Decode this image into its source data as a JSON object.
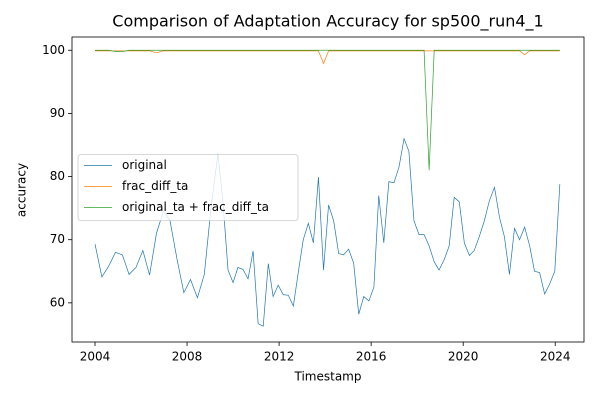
{
  "chart_data": {
    "type": "line",
    "title": "Comparison of Adaptation Accuracy for sp500_run4_1",
    "x_label": "Timestamp",
    "y_label": "accuracy",
    "x": [
      2004.0,
      2004.3,
      2004.59,
      2004.89,
      2005.19,
      2005.48,
      2005.78,
      2006.08,
      2006.37,
      2006.67,
      2006.97,
      2007.26,
      2007.56,
      2007.86,
      2008.15,
      2008.45,
      2008.75,
      2009.04,
      2009.34,
      2009.56,
      2009.78,
      2010.0,
      2010.21,
      2010.43,
      2010.65,
      2010.87,
      2011.09,
      2011.31,
      2011.53,
      2011.74,
      2011.96,
      2012.18,
      2012.4,
      2012.62,
      2012.84,
      2013.05,
      2013.27,
      2013.49,
      2013.71,
      2013.93,
      2014.15,
      2014.37,
      2014.59,
      2014.8,
      2015.02,
      2015.24,
      2015.46,
      2015.68,
      2015.9,
      2016.12,
      2016.33,
      2016.55,
      2016.77,
      2016.99,
      2017.21,
      2017.43,
      2017.64,
      2017.86,
      2018.08,
      2018.3,
      2018.52,
      2018.74,
      2018.95,
      2019.17,
      2019.39,
      2019.61,
      2019.83,
      2020.05,
      2020.27,
      2020.48,
      2020.7,
      2020.92,
      2021.14,
      2021.36,
      2021.58,
      2021.79,
      2022.01,
      2022.23,
      2022.45,
      2022.67,
      2022.89,
      2023.1,
      2023.32,
      2023.54,
      2023.76,
      2023.98,
      2024.2
    ],
    "series": [
      {
        "name": "original",
        "color": "#1f77b4",
        "values": [
          69.3,
          64.1,
          65.8,
          68.0,
          67.6,
          64.5,
          65.6,
          68.3,
          64.4,
          71.0,
          74.5,
          73.0,
          67.0,
          61.6,
          63.7,
          60.8,
          64.5,
          75.0,
          83.6,
          76.0,
          65.2,
          63.2,
          65.6,
          65.3,
          63.8,
          68.2,
          56.7,
          56.3,
          66.2,
          61.0,
          62.8,
          61.3,
          61.2,
          59.5,
          65.0,
          70.0,
          72.6,
          69.5,
          79.9,
          65.2,
          75.5,
          73.0,
          67.8,
          67.6,
          68.5,
          66.3,
          58.2,
          61.0,
          60.3,
          62.5,
          77.0,
          69.5,
          79.2,
          79.0,
          81.5,
          86.0,
          84.0,
          73.0,
          70.8,
          70.8,
          69.0,
          66.5,
          65.2,
          66.8,
          69.0,
          76.7,
          76.0,
          69.5,
          67.5,
          68.3,
          70.5,
          73.0,
          76.2,
          78.3,
          73.5,
          70.5,
          64.5,
          71.8,
          70.0,
          72.0,
          69.0,
          65.0,
          64.8,
          61.4,
          63.0,
          65.0,
          78.8
        ]
      },
      {
        "name": "frac_diff_ta",
        "color": "#ff7f0e",
        "values": [
          99.9,
          99.9,
          99.9,
          99.9,
          99.9,
          99.9,
          99.9,
          99.9,
          99.9,
          99.6,
          99.9,
          99.9,
          99.9,
          99.9,
          99.9,
          99.9,
          99.9,
          99.9,
          99.9,
          99.9,
          99.9,
          99.9,
          99.9,
          99.9,
          99.9,
          99.9,
          99.9,
          99.9,
          99.9,
          99.9,
          99.9,
          99.9,
          99.9,
          99.9,
          99.9,
          99.9,
          99.9,
          99.9,
          99.9,
          97.9,
          99.9,
          99.9,
          99.9,
          99.9,
          99.9,
          99.9,
          99.9,
          99.9,
          99.9,
          99.9,
          99.9,
          99.9,
          99.9,
          99.9,
          99.9,
          99.9,
          99.9,
          99.9,
          99.9,
          99.9,
          99.9,
          99.9,
          99.9,
          99.9,
          99.9,
          99.9,
          99.9,
          99.9,
          99.9,
          99.9,
          99.9,
          99.9,
          99.9,
          99.9,
          99.9,
          99.9,
          99.9,
          99.9,
          99.9,
          99.3,
          99.9,
          99.9,
          99.9,
          99.9,
          99.9,
          99.9,
          99.9
        ]
      },
      {
        "name": "original_ta + frac_diff_ta",
        "color": "#2ca02c",
        "values": [
          100.0,
          100.0,
          100.0,
          99.8,
          99.8,
          100.0,
          100.0,
          100.0,
          100.0,
          100.0,
          100.0,
          100.0,
          100.0,
          100.0,
          100.0,
          100.0,
          100.0,
          100.0,
          100.0,
          100.0,
          100.0,
          100.0,
          100.0,
          100.0,
          100.0,
          100.0,
          100.0,
          100.0,
          100.0,
          100.0,
          100.0,
          100.0,
          100.0,
          100.0,
          100.0,
          100.0,
          100.0,
          100.0,
          100.0,
          100.0,
          100.0,
          100.0,
          100.0,
          100.0,
          100.0,
          100.0,
          100.0,
          100.0,
          100.0,
          100.0,
          100.0,
          100.0,
          100.0,
          100.0,
          100.0,
          100.0,
          100.0,
          100.0,
          100.0,
          100.0,
          81.0,
          100.0,
          100.0,
          100.0,
          100.0,
          100.0,
          100.0,
          100.0,
          100.0,
          100.0,
          100.0,
          100.0,
          100.0,
          100.0,
          100.0,
          100.0,
          100.0,
          100.0,
          100.0,
          100.0,
          100.0,
          100.0,
          100.0,
          100.0,
          100.0,
          100.0,
          100.0
        ]
      }
    ],
    "xlim": [
      2003.0,
      2025.25
    ],
    "ylim": [
      53.8,
      102.1
    ],
    "xticks": [
      2004,
      2008,
      2012,
      2016,
      2020,
      2024
    ],
    "yticks": [
      60,
      70,
      80,
      90,
      100
    ],
    "legend": "center left"
  }
}
